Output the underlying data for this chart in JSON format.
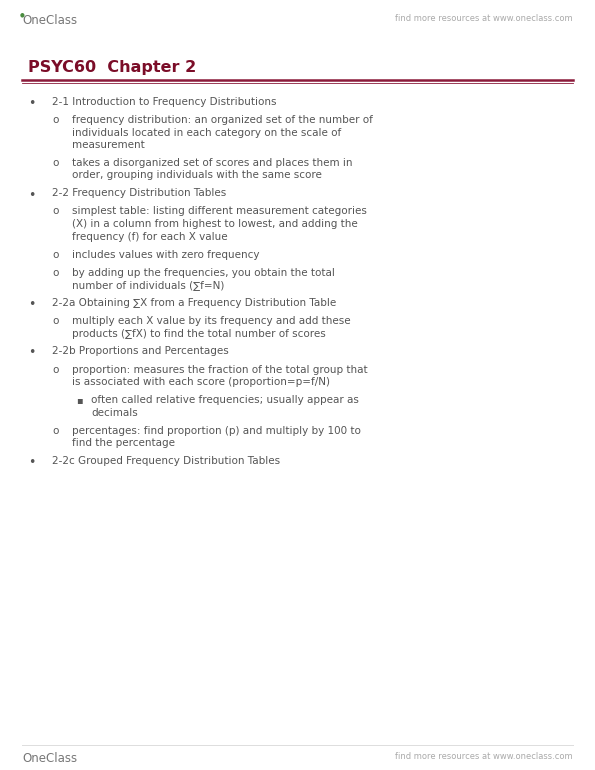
{
  "bg_color": "#ffffff",
  "header_logo_text": "OneClass",
  "header_right_text": "find more resources at www.oneclass.com",
  "footer_logo_text": "OneClass",
  "footer_right_text": "find more resources at www.oneclass.com",
  "logo_leaf_color": "#4a8c3f",
  "header_rule_color1": "#8B1A3A",
  "header_rule_color2": "#6B0A2A",
  "title": "PSYC60  Chapter 2",
  "title_color": "#7B0D28",
  "title_fontsize": 11.5,
  "header_fontsize": 7.0,
  "body_fontsize": 7.5,
  "body_color": "#555555",
  "bullet_color": "#555555",
  "content": [
    {
      "level": 0,
      "text": "2-1 Introduction to Frequency Distributions"
    },
    {
      "level": 1,
      "text": "frequency distribution: an organized set of the number of\nindividuals located in each category on the scale of\nmeasurement"
    },
    {
      "level": 1,
      "text": "takes a disorganized set of scores and places them in\norder, grouping individuals with the same score"
    },
    {
      "level": 0,
      "text": "2-2 Frequency Distribution Tables"
    },
    {
      "level": 1,
      "text": "simplest table: listing different measurement categories\n(X) in a column from highest to lowest, and adding the\nfrequency (f) for each X value"
    },
    {
      "level": 1,
      "text": "includes values with zero frequency"
    },
    {
      "level": 1,
      "text": "by adding up the frequencies, you obtain the total\nnumber of individuals (∑f=N)"
    },
    {
      "level": 0,
      "text": "2-2a Obtaining ∑X from a Frequency Distribution Table"
    },
    {
      "level": 1,
      "text": "multiply each X value by its frequency and add these\nproducts (∑fX) to find the total number of scores"
    },
    {
      "level": 0,
      "text": "2-2b Proportions and Percentages"
    },
    {
      "level": 1,
      "text": "proportion: measures the fraction of the total group that\nis associated with each score (proportion=p=f/N)"
    },
    {
      "level": 2,
      "text": "often called relative frequencies; usually appear as\ndecimals"
    },
    {
      "level": 1,
      "text": "percentages: find proportion (p) and multiply by 100 to\nfind the percentage"
    },
    {
      "level": 0,
      "text": "2-2c Grouped Frequency Distribution Tables"
    }
  ]
}
